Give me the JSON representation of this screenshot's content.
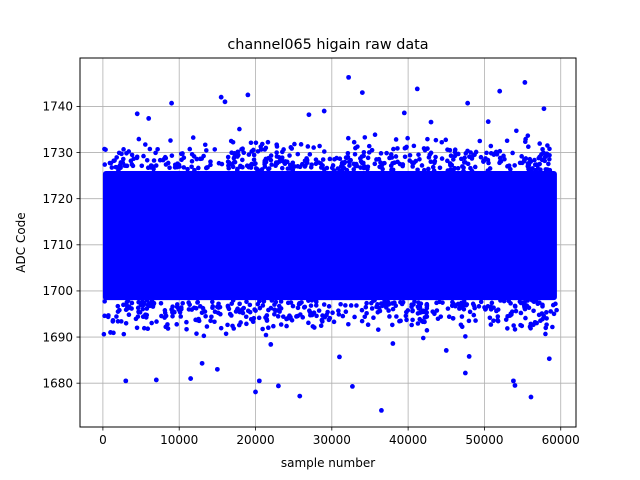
{
  "chart_data": {
    "type": "scatter",
    "title": "channel065 higain raw data",
    "xlabel": "sample number",
    "ylabel": "ADC Code",
    "xlim": [
      -3000,
      62000
    ],
    "ylim": [
      1670.5,
      1750.5
    ],
    "x_ticks": [
      0,
      10000,
      20000,
      30000,
      40000,
      50000,
      60000
    ],
    "x_tick_labels": [
      "0",
      "10000",
      "20000",
      "30000",
      "40000",
      "50000",
      "60000"
    ],
    "y_ticks": [
      1680,
      1690,
      1700,
      1710,
      1720,
      1730,
      1740
    ],
    "y_tick_labels": [
      "1680",
      "1690",
      "1700",
      "1710",
      "1720",
      "1730",
      "1740"
    ],
    "grid": true,
    "legend": "none",
    "marker_color": "#0000ff",
    "series": [
      {
        "core_band": {
          "x_range": [
            0,
            59500
          ],
          "y_range": [
            1698,
            1726
          ]
        },
        "outliers": {
          "x": [
            3000,
            7000,
            9000,
            11500,
            15000,
            15500,
            16000,
            20000,
            20500,
            23000,
            25800,
            32200,
            32700,
            34000,
            36500,
            39500,
            41200,
            47500,
            47800,
            52000,
            53800,
            55300,
            56100,
            57800,
            4500,
            13000,
            19000,
            29000,
            31000,
            45000,
            48000,
            50500,
            54000,
            58500,
            1000,
            6000,
            22000,
            27000,
            38000,
            43000
          ],
          "y": [
            1680.5,
            1680.7,
            1740.7,
            1681,
            1683,
            1742,
            1741,
            1678.1,
            1680.5,
            1679.4,
            1677.2,
            1746.3,
            1679.3,
            1743,
            1674.1,
            1738.6,
            1743.8,
            1682.2,
            1740.7,
            1743.3,
            1680.5,
            1745.2,
            1677,
            1739.5,
            1738.4,
            1684.3,
            1742.5,
            1739,
            1685.7,
            1687.1,
            1685.8,
            1736.7,
            1679.5,
            1685.3,
            1691,
            1737.4,
            1688.4,
            1738.2,
            1688.6,
            1736.6
          ]
        }
      }
    ]
  }
}
